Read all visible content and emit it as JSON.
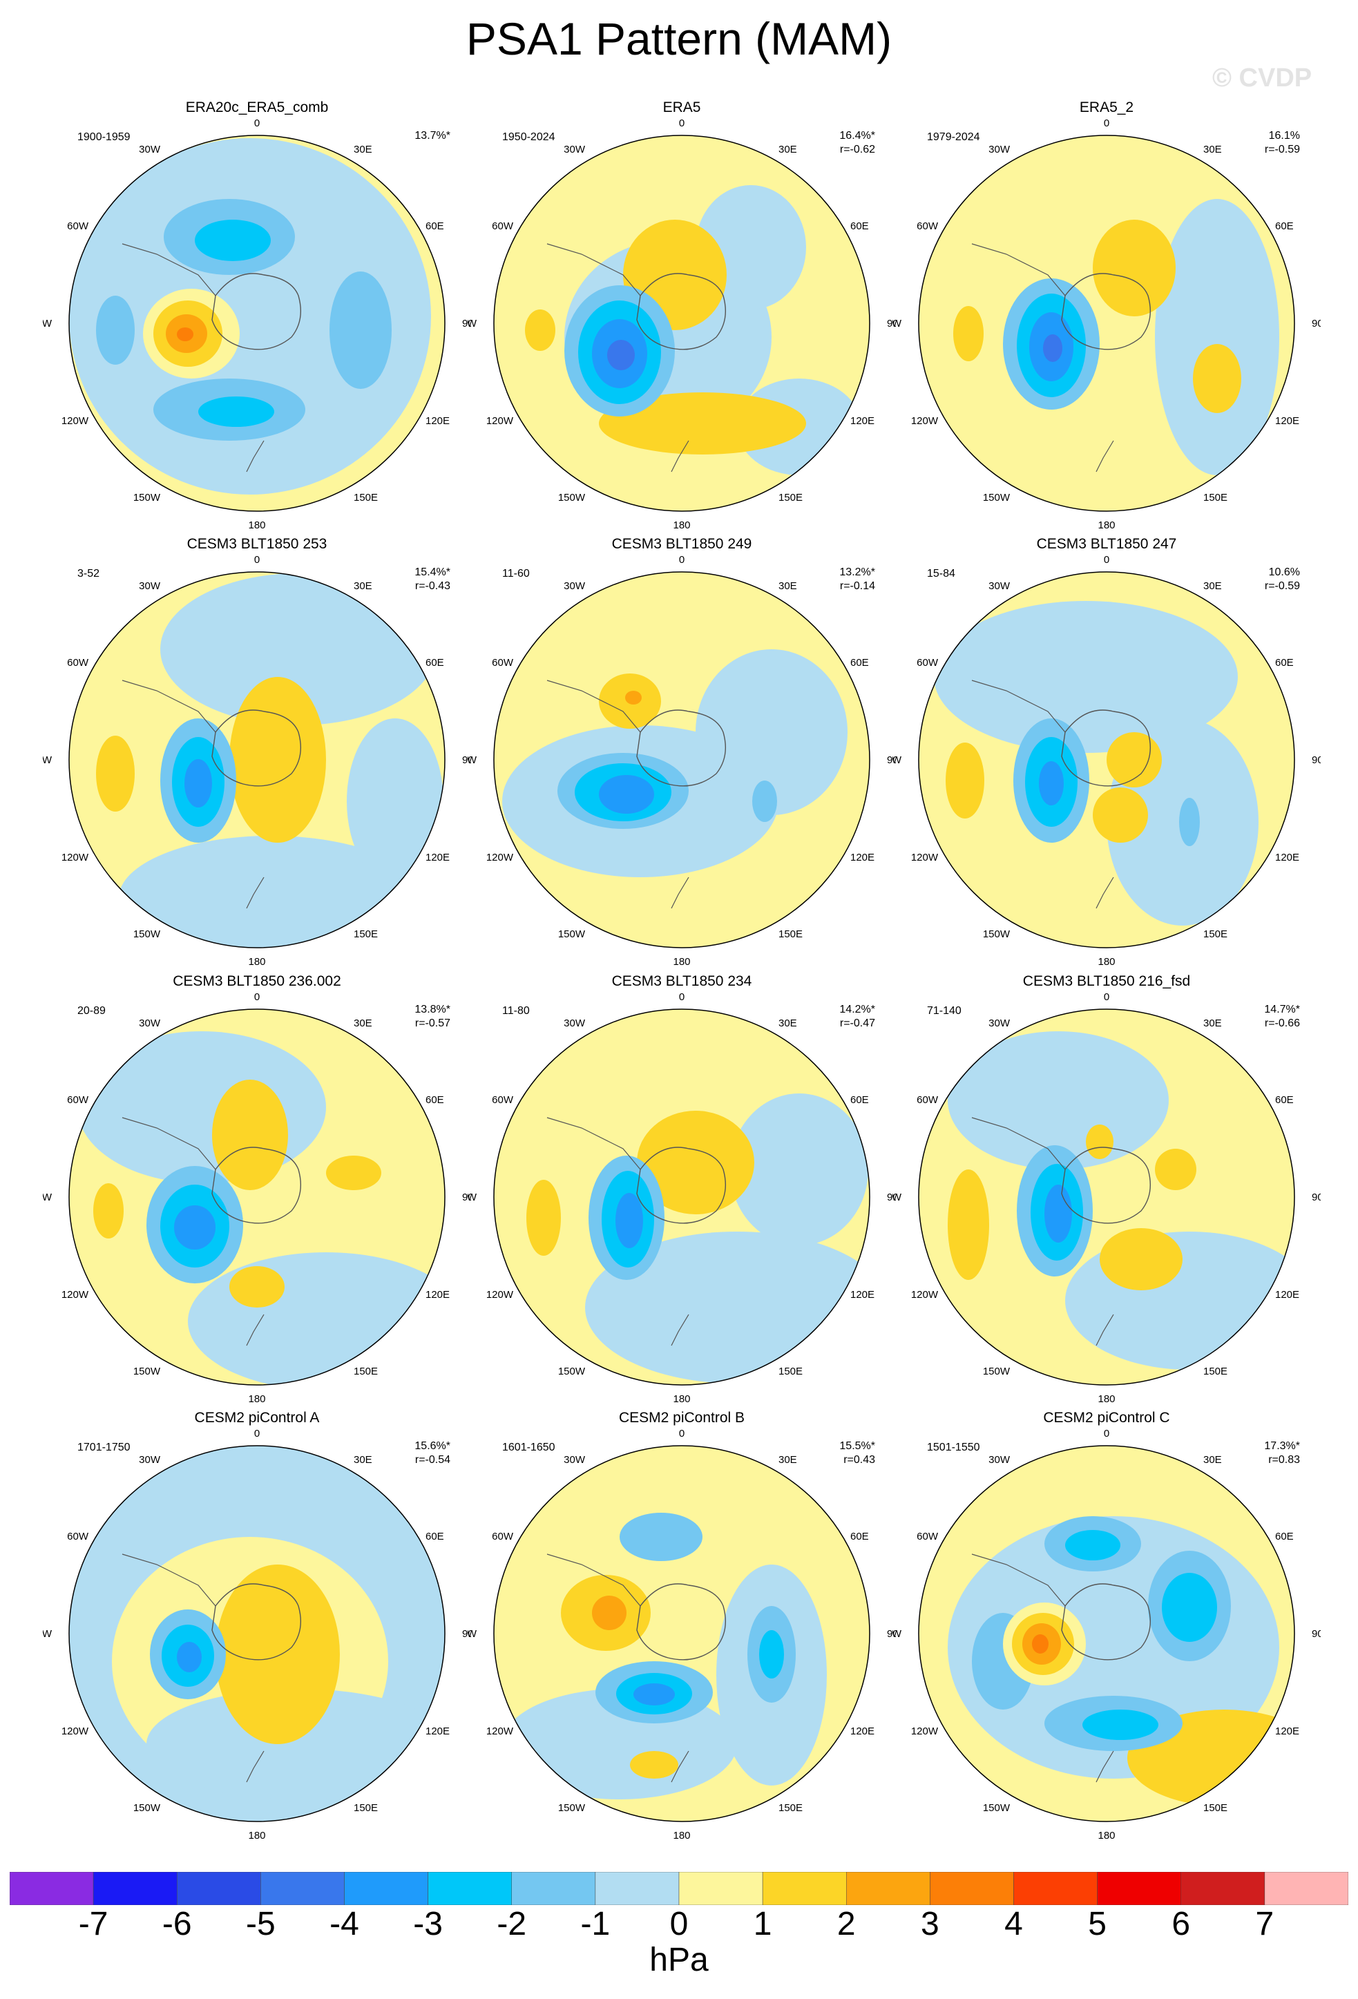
{
  "title": "PSA1 Pattern (MAM)",
  "watermark": "© CVDP",
  "lon_labels": [
    {
      "text": "0",
      "pos": "top"
    },
    {
      "text": "30E",
      "pos": "tr"
    },
    {
      "text": "60E",
      "pos": "ur"
    },
    {
      "text": "90E",
      "pos": "right"
    },
    {
      "text": "120E",
      "pos": "lr"
    },
    {
      "text": "150E",
      "pos": "br"
    },
    {
      "text": "180",
      "pos": "bottom"
    },
    {
      "text": "150W",
      "pos": "bl"
    },
    {
      "text": "120W",
      "pos": "ll"
    },
    {
      "text": "90W",
      "pos": "left"
    },
    {
      "text": "60W",
      "pos": "ul"
    },
    {
      "text": "30W",
      "pos": "tl"
    }
  ],
  "colorbar": {
    "colors": [
      "#8a2be2",
      "#1a1af5",
      "#2a4be6",
      "#3977ec",
      "#1f9bfb",
      "#00c7f9",
      "#74c7f1",
      "#b2ddf2",
      "#fdf69c",
      "#fcd527",
      "#fca50f",
      "#fc7f07",
      "#fc3f03",
      "#ef0000",
      "#d01e1e",
      "#ffb4b4"
    ],
    "labels": [
      "-7",
      "-6",
      "-5",
      "-4",
      "-3",
      "-2",
      "-1",
      "0",
      "1",
      "2",
      "3",
      "4",
      "5",
      "6",
      "7"
    ],
    "unit": "hPa"
  },
  "panels": [
    {
      "title": "ERA20c_ERA5_comb",
      "years": "1900-1959",
      "pct": "13.7%*",
      "r": ""
    },
    {
      "title": "ERA5",
      "years": "1950-2024",
      "pct": "16.4%*",
      "r": "r=-0.62"
    },
    {
      "title": "ERA5_2",
      "years": "1979-2024",
      "pct": "16.1%",
      "r": "r=-0.59"
    },
    {
      "title": "CESM3 BLT1850 253",
      "years": "3-52",
      "pct": "15.4%*",
      "r": "r=-0.43"
    },
    {
      "title": "CESM3 BLT1850 249",
      "years": "11-60",
      "pct": "13.2%*",
      "r": "r=-0.14"
    },
    {
      "title": "CESM3 BLT1850 247",
      "years": "15-84",
      "pct": "10.6%",
      "r": "r=-0.59"
    },
    {
      "title": "CESM3 BLT1850 236.002",
      "years": "20-89",
      "pct": "13.8%*",
      "r": "r=-0.57"
    },
    {
      "title": "CESM3 BLT1850 234",
      "years": "11-80",
      "pct": "14.2%*",
      "r": "r=-0.47"
    },
    {
      "title": "CESM3 BLT1850 216_fsd",
      "years": "71-140",
      "pct": "14.7%*",
      "r": "r=-0.66"
    },
    {
      "title": "CESM2 piControl A",
      "years": "1701-1750",
      "pct": "15.6%*",
      "r": "r=-0.54"
    },
    {
      "title": "CESM2 piControl B",
      "years": "1601-1650",
      "pct": "15.5%*",
      "r": "r=0.43"
    },
    {
      "title": "CESM2 piControl C",
      "years": "1501-1550",
      "pct": "17.3%*",
      "r": "r=0.83"
    }
  ]
}
